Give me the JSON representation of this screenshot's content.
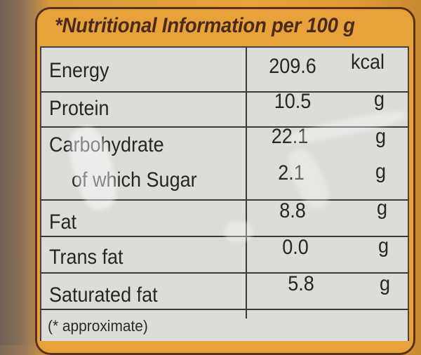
{
  "title": "*Nutritional Information per 100 g",
  "rows": [
    {
      "label": "Energy",
      "value": "209.6",
      "unit": "kcal"
    },
    {
      "label": "Protein",
      "value": "10.5",
      "unit": "g"
    },
    {
      "label": "Carbohydrate",
      "value": "22.1",
      "unit": "g"
    },
    {
      "label": "of which Sugar",
      "value": "2.1",
      "unit": "g"
    },
    {
      "label": "Fat",
      "value": "8.8",
      "unit": "g"
    },
    {
      "label": "Trans fat",
      "value": "0.0",
      "unit": "g"
    },
    {
      "label": "Saturated fat",
      "value": "5.8",
      "unit": "g"
    }
  ],
  "footnote": "(* approximate)",
  "colors": {
    "package_orange": "#e8a23a",
    "border_brown": "#5a3120",
    "table_bg": "#dedcd8"
  }
}
